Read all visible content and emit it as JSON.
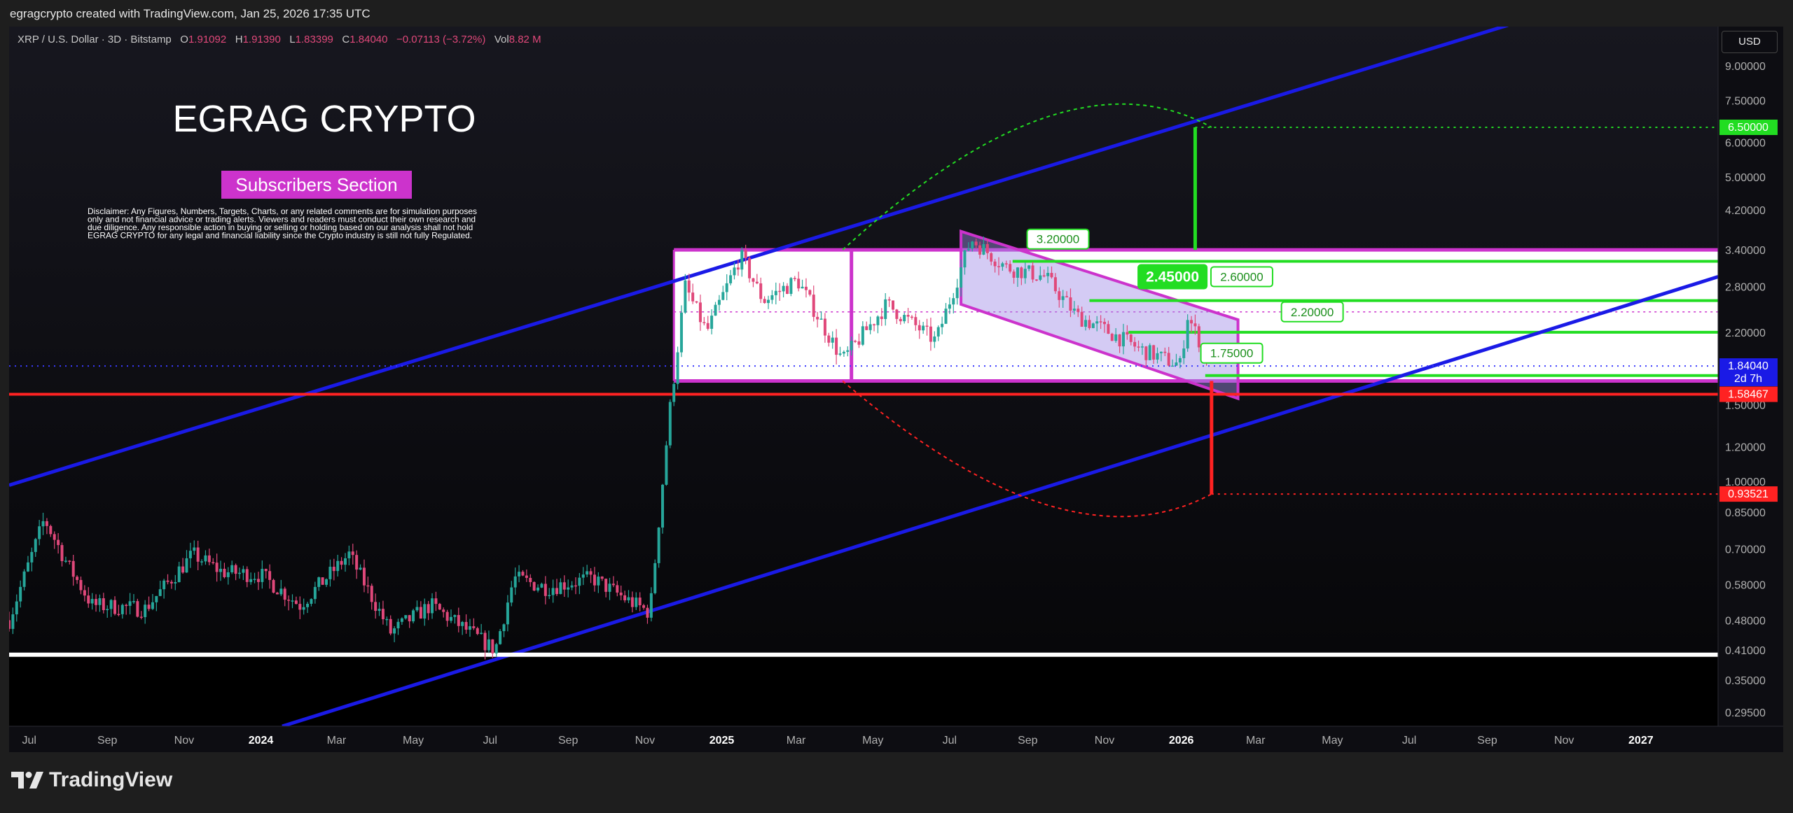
{
  "header": {
    "attribution": "egragcrypto created with TradingView.com, Jan 25, 2026 17:35 UTC"
  },
  "symbol_bar": {
    "symbol": "XRP / U.S. Dollar · 3D · Bitstamp",
    "o_label": "O",
    "o_value": "1.91092",
    "h_label": "H",
    "h_value": "1.91390",
    "l_label": "L",
    "l_value": "1.83399",
    "c_label": "C",
    "c_value": "1.84040",
    "change": "−0.07113 (−3.72%)",
    "vol_label": "Vol",
    "vol_value": "8.82 M"
  },
  "currency_button": "USD",
  "overlay": {
    "title": "EGRAG CRYPTO",
    "subtitle": "Subscribers Section",
    "disclaimer_lines": [
      "Disclaimer: Any Figures, Numbers, Targets, Charts, or any related comments are for simulation purposes",
      "only and not financial advice or trading alerts. Viewers and readers must conduct their own research and",
      "due diligence. Any responsible action in buying or selling or holding based on our analysis shall not hold",
      "EGRAG CRYPTO for any legal and financial liability since the Crypto industry is still not fully Regulated."
    ]
  },
  "brand": "TradingView",
  "colors": {
    "bull": "#26a69a",
    "bear": "#e0487a",
    "channel": "#1a1ae6",
    "range_box": "#cc33cc",
    "target_green": "#22dd22",
    "stop_red": "#ff2222",
    "price_badge": "#1a1ae6"
  },
  "chart_data": {
    "type": "candlestick",
    "title": "XRP / U.S. Dollar · 3D · Bitstamp",
    "y_scale": "log",
    "y_ticks": [
      9.0,
      7.5,
      6.0,
      5.0,
      4.2,
      3.4,
      2.8,
      2.2,
      1.5,
      1.2,
      1.0,
      0.85,
      0.7,
      0.58,
      0.48,
      0.41,
      0.35,
      0.295
    ],
    "y_tick_labels": [
      "9.00000",
      "7.50000",
      "6.00000",
      "5.00000",
      "4.20000",
      "3.40000",
      "2.80000",
      "2.20000",
      "1.50000",
      "1.20000",
      "1.00000",
      "0.85000",
      "0.70000",
      "0.58000",
      "0.48000",
      "0.41000",
      "0.35000",
      "0.29500"
    ],
    "x_ticks": [
      "Jul",
      "Sep",
      "Nov",
      "2024",
      "Mar",
      "May",
      "Jul",
      "Sep",
      "Nov",
      "2025",
      "Mar",
      "May",
      "Jul",
      "Sep",
      "Nov",
      "2026",
      "Mar",
      "May",
      "Jul",
      "Sep",
      "Nov",
      "2027"
    ],
    "price_track": [
      [
        "2023-06-15",
        0.48
      ],
      [
        "2023-07-13",
        0.82
      ],
      [
        "2023-08-01",
        0.64
      ],
      [
        "2023-08-20",
        0.52
      ],
      [
        "2023-10-01",
        0.51
      ],
      [
        "2023-11-08",
        0.68
      ],
      [
        "2023-12-01",
        0.62
      ],
      [
        "2024-01-01",
        0.61
      ],
      [
        "2024-02-01",
        0.52
      ],
      [
        "2024-03-11",
        0.68
      ],
      [
        "2024-04-13",
        0.45
      ],
      [
        "2024-05-15",
        0.52
      ],
      [
        "2024-07-05",
        0.41
      ],
      [
        "2024-07-20",
        0.6
      ],
      [
        "2024-08-15",
        0.57
      ],
      [
        "2024-09-20",
        0.6
      ],
      [
        "2024-10-20",
        0.53
      ],
      [
        "2024-11-05",
        0.5
      ],
      [
        "2024-11-20",
        1.4
      ],
      [
        "2024-12-03",
        2.8
      ],
      [
        "2024-12-20",
        2.2
      ],
      [
        "2025-01-16",
        3.3
      ],
      [
        "2025-02-03",
        2.6
      ],
      [
        "2025-03-02",
        2.9
      ],
      [
        "2025-04-07",
        1.9
      ],
      [
        "2025-05-12",
        2.55
      ],
      [
        "2025-06-20",
        2.1
      ],
      [
        "2025-07-18",
        3.6
      ],
      [
        "2025-08-15",
        3.1
      ],
      [
        "2025-09-15",
        2.95
      ],
      [
        "2025-10-10",
        2.4
      ],
      [
        "2025-11-05",
        2.2
      ],
      [
        "2025-12-01",
        2.0
      ],
      [
        "2025-12-31",
        1.85
      ],
      [
        "2026-01-06",
        2.4
      ],
      [
        "2026-01-25",
        1.8404
      ]
    ],
    "last_price": "1.84040",
    "countdown": "2d 7h",
    "support_line": "1.58467",
    "upside_target": "6.50000",
    "downside_target": "0.93521",
    "callouts": [
      "3.20000",
      "2.45000",
      "2.60000",
      "2.20000",
      "1.75000"
    ],
    "horizontal_levels": [
      3.2,
      2.6,
      2.2,
      1.75
    ],
    "range_box": [
      1.7,
      3.4
    ],
    "floor_line": 0.4
  }
}
